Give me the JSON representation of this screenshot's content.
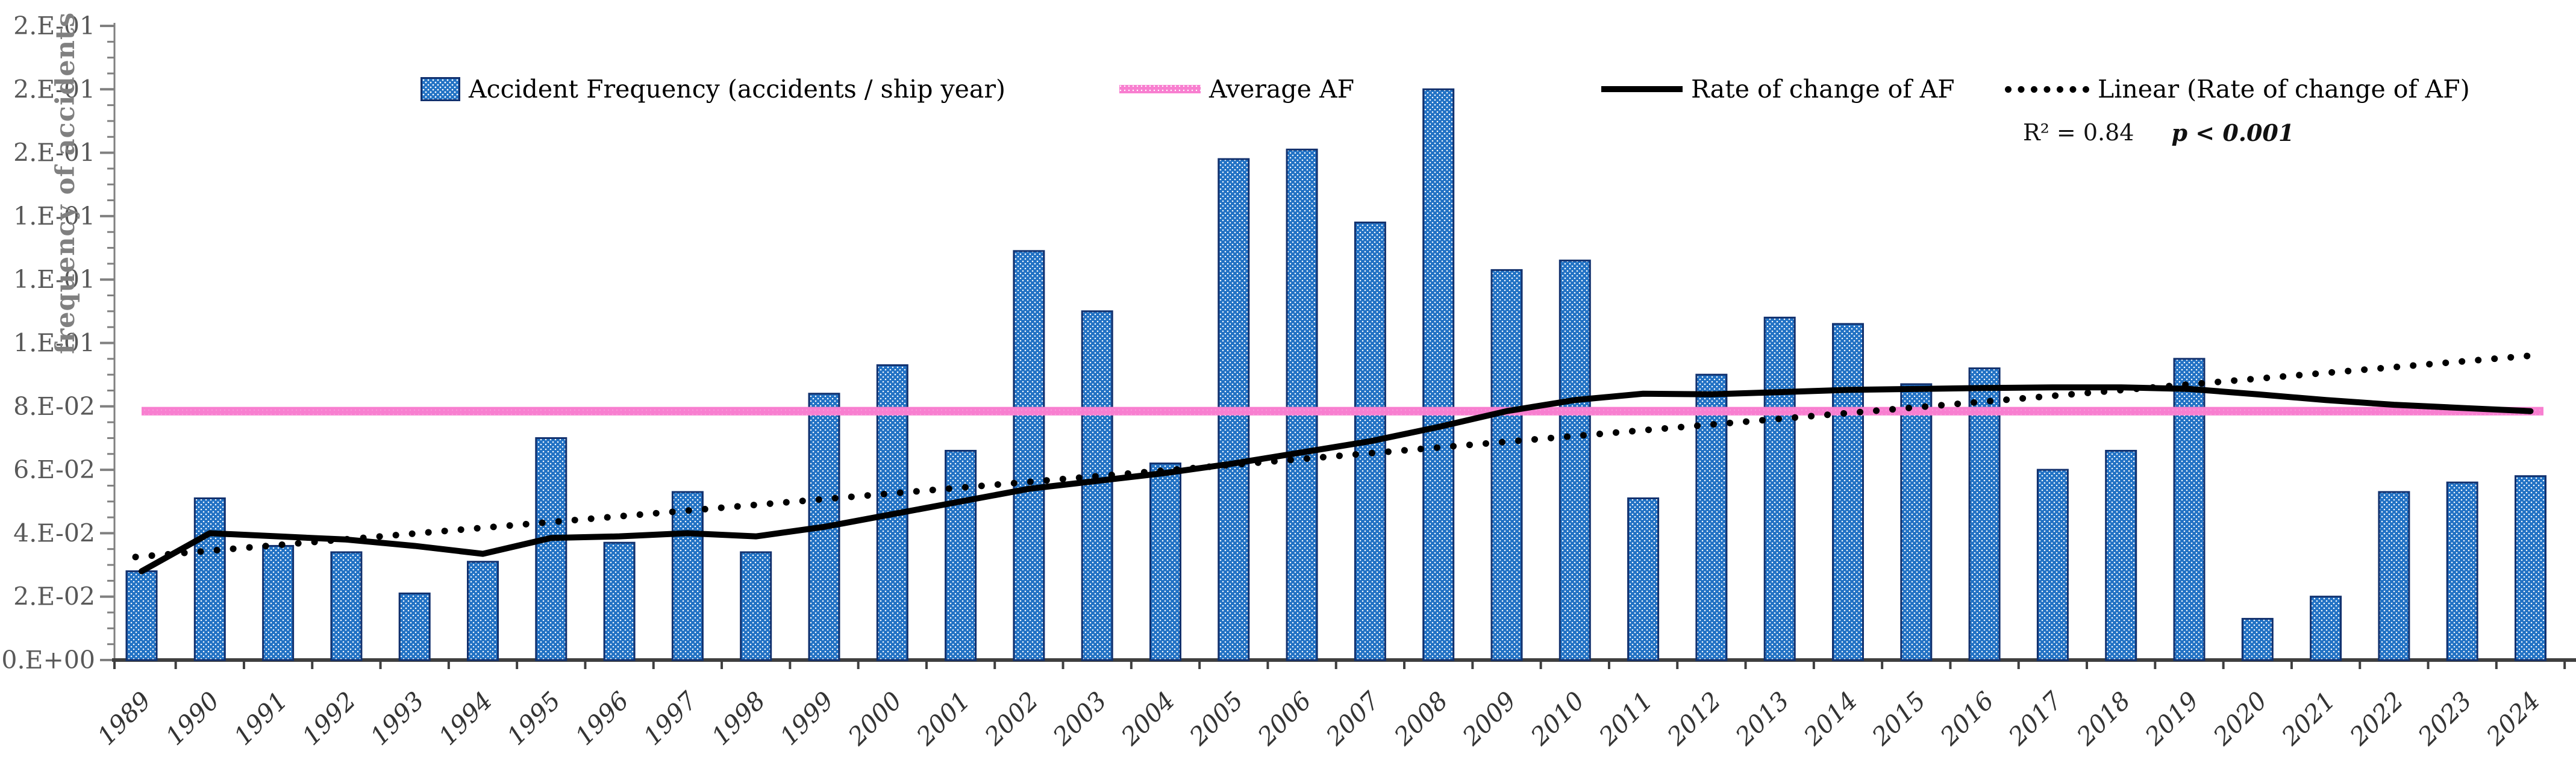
{
  "colors": {
    "bar_fill": "#2272C4",
    "bar_border": "#12316E",
    "average_line": "#F87FD0",
    "rate_line": "#000000",
    "trend_line": "#000000",
    "axis_light": "#808080",
    "axis_dark": "#3F3F3F",
    "tick_label": "#595959",
    "year_label": "#333333"
  },
  "legend": {
    "items": [
      {
        "label": "Accident Frequency (accidents / ship year)",
        "swatch": "bar-pattern-swatch"
      },
      {
        "label": "Average AF",
        "swatch": "pink-line-swatch"
      },
      {
        "label": "Rate of change of AF",
        "swatch": "black-line-swatch"
      },
      {
        "label": "Linear (Rate of change of AF)",
        "swatch": "dotted-line-swatch"
      }
    ]
  },
  "annotation": {
    "r2": "R² = 0.84",
    "p": "p < 0.001"
  },
  "chart_data": {
    "type": "bar",
    "title": "",
    "xlabel": "",
    "ylabel": "frequency of accidents",
    "ylim": [
      0,
      0.2
    ],
    "grid": false,
    "legend_position": "top",
    "y_major_step": 0.02,
    "y_minor_step": 0.005,
    "y_tick_labels_top_to_bottom": [
      "2.E-01",
      "2.E-01",
      "2.E-01",
      "1.E-01",
      "1.E-01",
      "1.E-01",
      "8.E-02",
      "6.E-02",
      "4.E-02",
      "2.E-02",
      "0.E+00"
    ],
    "categories": [
      1989,
      1990,
      1991,
      1992,
      1993,
      1994,
      1995,
      1996,
      1997,
      1998,
      1999,
      2000,
      2001,
      2002,
      2003,
      2004,
      2005,
      2006,
      2007,
      2008,
      2009,
      2010,
      2011,
      2012,
      2013,
      2014,
      2015,
      2016,
      2017,
      2018,
      2019,
      2020,
      2021,
      2022,
      2023,
      2024
    ],
    "series": [
      {
        "name": "Accident Frequency (accidents / ship year)",
        "type": "bar",
        "values": [
          0.028,
          0.051,
          0.036,
          0.034,
          0.021,
          0.031,
          0.07,
          0.037,
          0.053,
          0.034,
          0.084,
          0.093,
          0.066,
          0.129,
          0.11,
          0.062,
          0.158,
          0.161,
          0.138,
          0.18,
          0.123,
          0.126,
          0.051,
          0.09,
          0.108,
          0.106,
          0.087,
          0.092,
          0.06,
          0.066,
          0.095,
          0.013,
          0.02,
          0.053,
          0.056,
          0.058
        ]
      },
      {
        "name": "Average AF",
        "type": "line-constant",
        "value": 0.0785
      },
      {
        "name": "Rate of change of AF",
        "type": "line",
        "values": [
          0.028,
          0.04,
          0.039,
          0.038,
          0.036,
          0.0335,
          0.0385,
          0.039,
          0.04,
          0.039,
          0.042,
          0.046,
          0.05,
          0.054,
          0.0565,
          0.059,
          0.062,
          0.0655,
          0.069,
          0.0735,
          0.0785,
          0.082,
          0.084,
          0.0838,
          0.0845,
          0.0852,
          0.0855,
          0.0858,
          0.086,
          0.086,
          0.0855,
          0.0838,
          0.082,
          0.0805,
          0.0795,
          0.0785
        ]
      },
      {
        "name": "Linear (Rate of change of AF)",
        "type": "trendline",
        "start_value": 0.0325,
        "end_value": 0.0959,
        "r_squared": 0.84,
        "p_text": "p < 0.001"
      }
    ]
  }
}
